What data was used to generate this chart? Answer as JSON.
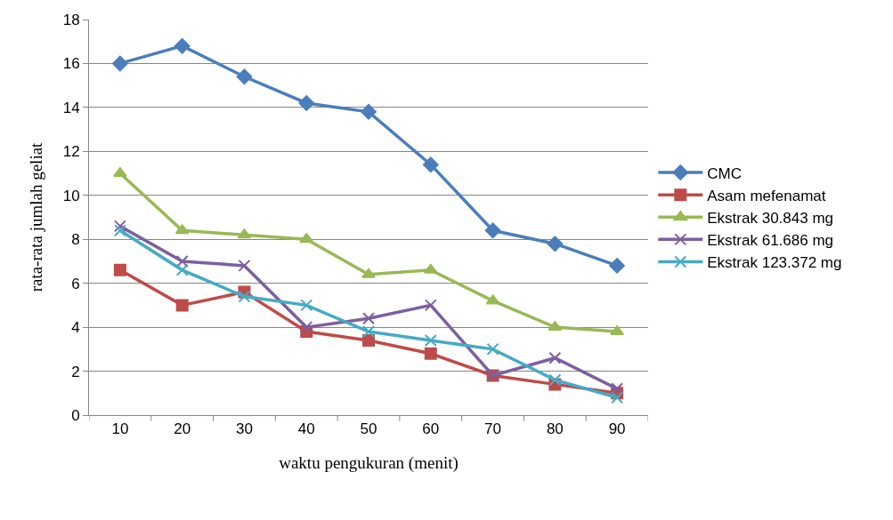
{
  "chart_data": {
    "type": "line",
    "xlabel": "waktu pengukuran (menit)",
    "ylabel": "rata-rata jumlah geliat",
    "categories": [
      "10",
      "20",
      "30",
      "40",
      "50",
      "60",
      "70",
      "80",
      "90"
    ],
    "series": [
      {
        "name": "CMC",
        "color": "#4a7ebb",
        "marker": "diamond",
        "values": [
          16,
          16.8,
          15.4,
          14.2,
          13.8,
          11.4,
          8.4,
          7.8,
          6.8
        ]
      },
      {
        "name": "Asam mefenamat",
        "color": "#be4b48",
        "marker": "square",
        "values": [
          6.6,
          5.0,
          5.6,
          3.8,
          3.4,
          2.8,
          1.8,
          1.4,
          1.0
        ]
      },
      {
        "name": "Ekstrak 30.843 mg",
        "color": "#98b954",
        "marker": "triangle",
        "values": [
          11.0,
          8.4,
          8.2,
          8.0,
          6.4,
          6.6,
          5.2,
          4.0,
          3.8
        ]
      },
      {
        "name": "Ekstrak 61.686 mg",
        "color": "#7d5fa0",
        "marker": "cross",
        "values": [
          8.6,
          7.0,
          6.8,
          4.0,
          4.4,
          5.0,
          1.8,
          2.6,
          1.2
        ]
      },
      {
        "name": "Ekstrak 123.372 mg",
        "color": "#46aac5",
        "marker": "cross",
        "values": [
          8.4,
          6.6,
          5.4,
          5.0,
          3.8,
          3.4,
          3.0,
          1.6,
          0.8
        ]
      }
    ],
    "ylim": [
      0,
      18
    ],
    "yticks": [
      0,
      2,
      4,
      6,
      8,
      10,
      12,
      14,
      16,
      18
    ],
    "grid": "y",
    "legend": "right",
    "line_style": "solid"
  }
}
